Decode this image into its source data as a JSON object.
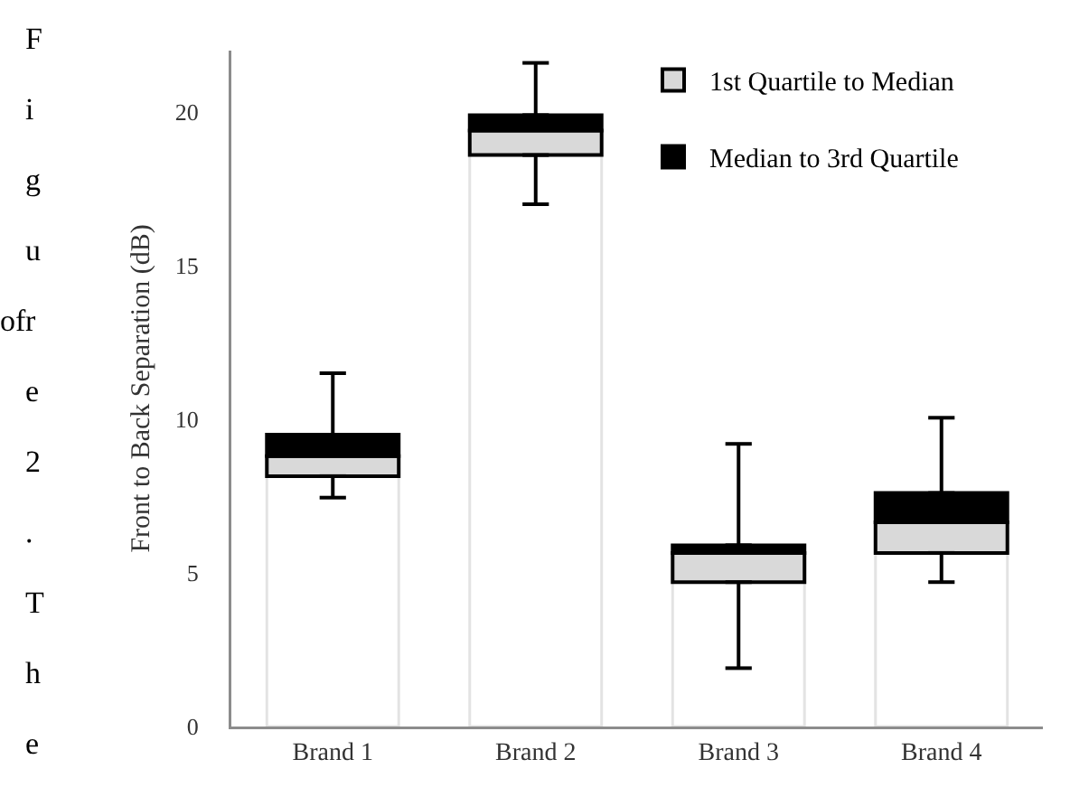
{
  "chart_data": {
    "type": "bar",
    "stacked": true,
    "ylabel": "Front to Back Separation (dB)",
    "categories": [
      "Brand 1",
      "Brand 2",
      "Brand 3",
      "Brand 4"
    ],
    "series": [
      {
        "color": "#ffffff",
        "values": [
          8.15,
          18.6,
          4.7,
          5.65
        ],
        "errors": [
          [
            7.45,
            8.15
          ],
          [
            17.0,
            18.6
          ],
          [
            1.9,
            4.7
          ],
          [
            4.7,
            5.65
          ]
        ]
      },
      {
        "name": "1st Quartile to Median",
        "color": "#d9d9d9",
        "values": [
          0.65,
          0.8,
          0.95,
          1.0
        ]
      },
      {
        "name": "Median to 3rd Quartile",
        "color": "#000000",
        "values": [
          0.7,
          0.5,
          0.25,
          0.95
        ],
        "errors": [
          [
            9.5,
            11.5
          ],
          [
            19.9,
            21.6
          ],
          [
            5.9,
            9.2
          ],
          [
            7.6,
            10.05
          ]
        ]
      }
    ],
    "ylim": [
      0,
      22
    ],
    "yticks": [
      0,
      5,
      10,
      15,
      20
    ],
    "grid": false,
    "legend": "top right",
    "annotations": [
      "Figure 2. The",
      "of"
    ]
  }
}
